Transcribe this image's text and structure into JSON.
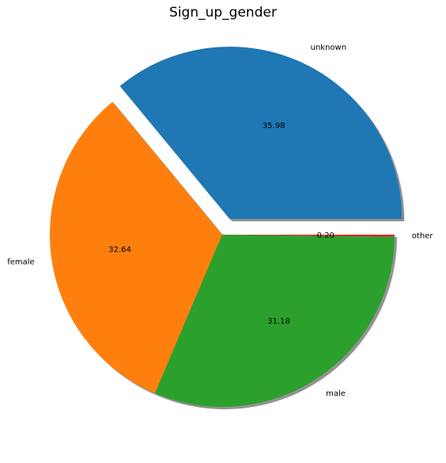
{
  "chart_data": {
    "type": "pie",
    "title": "Sign_up_gender",
    "categories": [
      "unknown",
      "female",
      "male",
      "other"
    ],
    "values": [
      35.98,
      32.64,
      31.18,
      0.2
    ],
    "value_labels": [
      "35.98",
      "32.64",
      "31.18",
      "0.20"
    ],
    "colors": [
      "#1f77b4",
      "#ff7f0e",
      "#2ca02c",
      "#d62728"
    ],
    "exploded": [
      "unknown"
    ],
    "shadow": true,
    "start_angle_deg": 0,
    "direction": "counterclockwise"
  }
}
